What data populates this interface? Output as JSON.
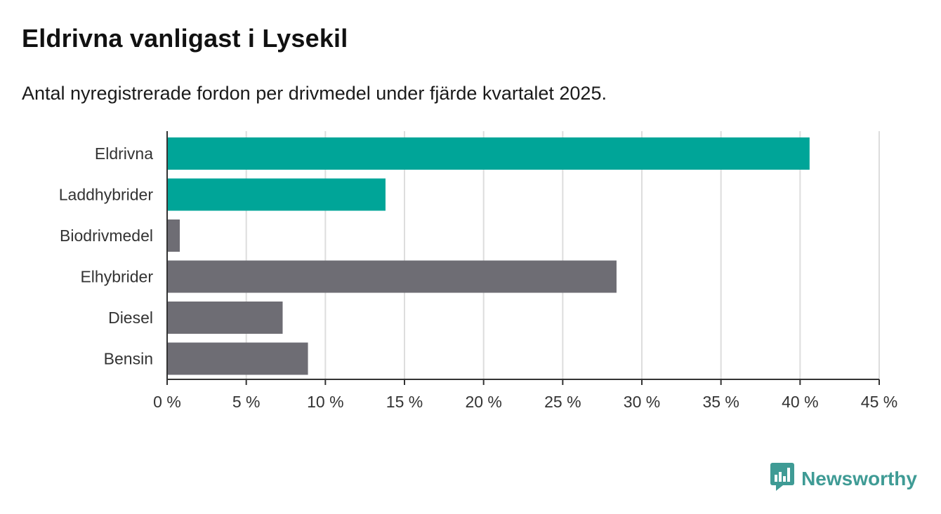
{
  "title": "Eldrivna vanligast i Lysekil",
  "subtitle": "Antal nyregistrerade fordon per drivmedel under fjärde kvartalet 2025.",
  "brand": {
    "name": "Newsworthy",
    "icon": "bar-chart-icon",
    "color": "#3f9b95"
  },
  "colors": {
    "highlight": "#00a598",
    "default": "#6e6d74",
    "grid": "#dddddd",
    "axis": "#333333"
  },
  "chart_data": {
    "type": "bar",
    "orientation": "horizontal",
    "title": "Eldrivna vanligast i Lysekil",
    "subtitle": "Antal nyregistrerade fordon per drivmedel under fjärde kvartalet 2025.",
    "categories": [
      "Eldrivna",
      "Laddhybrider",
      "Biodrivmedel",
      "Elhybrider",
      "Diesel",
      "Bensin"
    ],
    "values": [
      40.6,
      13.8,
      0.8,
      28.4,
      7.3,
      8.9
    ],
    "highlighted": [
      true,
      true,
      false,
      false,
      false,
      false
    ],
    "unit": "%",
    "xlim": [
      0,
      45
    ],
    "xticks": [
      0,
      5,
      10,
      15,
      20,
      25,
      30,
      35,
      40,
      45
    ],
    "xtick_labels": [
      "0 %",
      "5 %",
      "10 %",
      "15 %",
      "20 %",
      "25 %",
      "30 %",
      "35 %",
      "40 %",
      "45 %"
    ],
    "xlabel": "",
    "ylabel": "",
    "grid": true,
    "legend": "none"
  }
}
